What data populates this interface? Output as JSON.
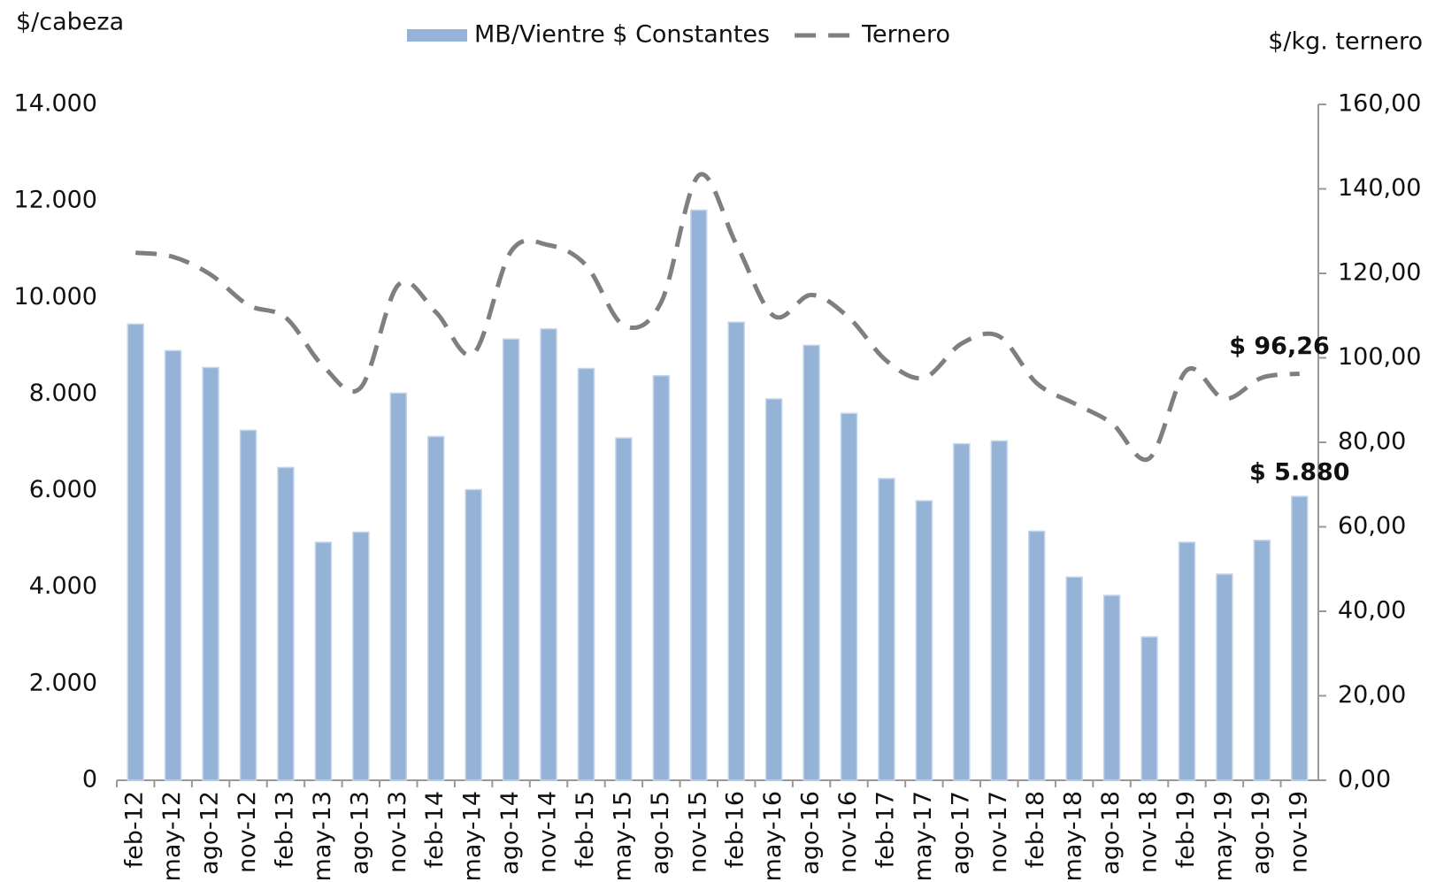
{
  "chart_data": {
    "type": "bar-line",
    "y_label": "$/cabeza",
    "y2_label": "$/kg. ternero",
    "categories": [
      "feb-12",
      "may-12",
      "ago-12",
      "nov-12",
      "feb-13",
      "may-13",
      "ago-13",
      "nov-13",
      "feb-14",
      "may-14",
      "ago-14",
      "nov-14",
      "feb-15",
      "may-15",
      "ago-15",
      "nov-15",
      "feb-16",
      "may-16",
      "ago-16",
      "nov-16",
      "feb-17",
      "may-17",
      "ago-17",
      "nov-17",
      "feb-18",
      "may-18",
      "ago-18",
      "nov-18",
      "feb-19",
      "may-19",
      "ago-19",
      "nov-19"
    ],
    "series": [
      {
        "name": "MB/Vientre $ Constantes",
        "type": "bar",
        "color": "#95b3d7",
        "values": [
          9450,
          8900,
          8550,
          7250,
          6480,
          4930,
          5140,
          8020,
          7120,
          6020,
          9140,
          9350,
          8530,
          7090,
          8380,
          11810,
          9490,
          7900,
          9010,
          7600,
          6250,
          5790,
          6970,
          7030,
          5160,
          4210,
          3830,
          2970,
          4930,
          4270,
          4970,
          5880
        ],
        "value_labels": [
          null,
          null,
          null,
          null,
          null,
          null,
          null,
          null,
          null,
          null,
          null,
          null,
          null,
          null,
          null,
          null,
          null,
          null,
          null,
          null,
          null,
          null,
          null,
          null,
          null,
          null,
          null,
          null,
          null,
          null,
          null,
          "$ 5.880"
        ]
      },
      {
        "name": "Ternero",
        "type": "line",
        "axis": "y2",
        "color": "#7f7f7f",
        "dashed": true,
        "values": [
          124.9,
          123.9,
          119.7,
          112.5,
          109.5,
          98,
          93,
          117.3,
          110.8,
          101,
          125.2,
          126.7,
          121.9,
          107.7,
          113.2,
          143.2,
          126.9,
          109.9,
          114.9,
          109.5,
          99.3,
          95.3,
          103.4,
          105.1,
          94,
          89.2,
          84.5,
          76.2,
          97.1,
          90.3,
          95.3,
          96.26
        ],
        "value_labels": [
          null,
          null,
          null,
          null,
          null,
          null,
          null,
          null,
          null,
          null,
          null,
          null,
          null,
          null,
          null,
          null,
          null,
          null,
          null,
          null,
          null,
          null,
          null,
          null,
          null,
          null,
          null,
          null,
          null,
          null,
          null,
          "$ 96,26"
        ]
      }
    ],
    "ylim": [
      0,
      14000
    ],
    "yticks": [
      0,
      {
        "value": 2000,
        "label": "2.000"
      },
      {
        "value": 4000,
        "label": "4.000"
      },
      {
        "value": 6000,
        "label": "6.000"
      },
      {
        "value": 8000,
        "label": "8.000"
      },
      {
        "value": 10000,
        "label": "10.000"
      },
      {
        "value": 12000,
        "label": "12.000"
      },
      {
        "value": 14000,
        "label": "14.000"
      }
    ],
    "y2lim": [
      0,
      160
    ],
    "y2ticks": [
      {
        "value": 0,
        "label": "0,00"
      },
      {
        "value": 20,
        "label": "20,00"
      },
      {
        "value": 40,
        "label": "40,00"
      },
      {
        "value": 60,
        "label": "60,00"
      },
      {
        "value": 80,
        "label": "80,00"
      },
      {
        "value": 100,
        "label": "100,00"
      },
      {
        "value": 120,
        "label": "120,00"
      },
      {
        "value": 140,
        "label": "140,00"
      },
      {
        "value": 160,
        "label": "160,00"
      }
    ],
    "legend": "top"
  }
}
